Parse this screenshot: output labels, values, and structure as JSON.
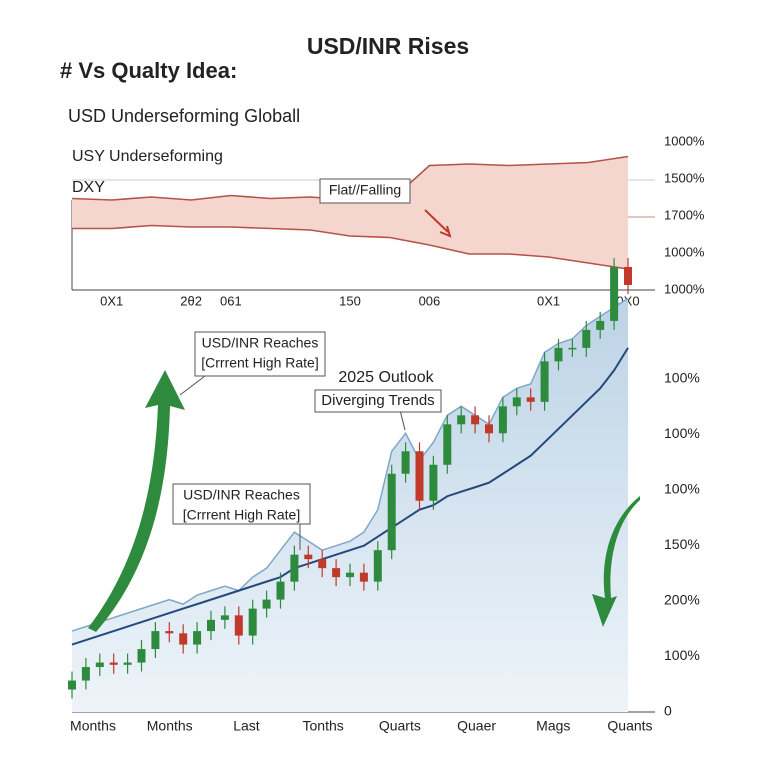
{
  "header": {
    "title": "USD/INR Rises",
    "subtitle": "# Vs Qualty Idea:",
    "caption": "USD Underseforming Globall"
  },
  "chart_data": [
    {
      "type": "line",
      "title": "USY Underseforming",
      "label": "DXY",
      "annotation": "Flat//Falling",
      "categories": [
        null,
        "0X1",
        null,
        "2θ2",
        "061",
        null,
        null,
        "150",
        null,
        "006",
        null,
        null,
        "0X1",
        null,
        "0X0"
      ],
      "series": [
        {
          "color": "#b5524a",
          "values": [
            61,
            60,
            62,
            60,
            63,
            61,
            62,
            60,
            59,
            83,
            84,
            83,
            84,
            85,
            89
          ]
        },
        {
          "color": "#b5524a",
          "values": [
            41,
            41,
            43,
            42,
            42,
            41,
            40,
            36,
            35,
            30,
            24,
            24,
            22,
            18,
            14
          ]
        }
      ],
      "fill": "#f4d6cf",
      "ylim": [
        0,
        100
      ],
      "y_labels": [
        "1000%",
        "1500%",
        "1700%",
        "1000%",
        "1000%"
      ]
    },
    {
      "type": "candlestick",
      "open": [
        5,
        7,
        10,
        11,
        10.5,
        11,
        14,
        18,
        17.5,
        15,
        18,
        20.5,
        21.5,
        17,
        23,
        25,
        29,
        35,
        34,
        32,
        30,
        31,
        29,
        36,
        53,
        58,
        47,
        55,
        64,
        66,
        64,
        62,
        68,
        70,
        69,
        78,
        81,
        81,
        85,
        87,
        99
      ],
      "high": [
        9,
        12,
        13,
        13,
        13,
        16,
        20,
        20,
        19.5,
        20,
        22.5,
        23.5,
        23.5,
        25,
        27,
        31,
        37,
        37,
        36,
        34,
        33,
        33,
        38,
        55,
        60,
        60,
        57,
        66,
        68,
        68,
        66,
        70,
        72,
        72,
        80,
        83,
        83,
        87,
        89,
        101,
        101
      ],
      "low": [
        3,
        5,
        8,
        8.5,
        8.5,
        9,
        12,
        15.5,
        13,
        13,
        16,
        18.5,
        15,
        15,
        21,
        23,
        27,
        32,
        30,
        28,
        28,
        27,
        27,
        34,
        51,
        45,
        45,
        53,
        62,
        62,
        60,
        60,
        66,
        67,
        67,
        76,
        79,
        79,
        83,
        85,
        93
      ],
      "close": [
        7,
        10,
        11,
        10.5,
        11,
        14,
        18,
        17.5,
        15,
        18,
        20.5,
        21.5,
        17,
        23,
        25,
        29,
        35,
        34,
        32,
        30,
        31,
        29,
        36,
        53,
        58,
        47,
        55,
        64,
        66,
        64,
        62,
        68,
        70,
        69,
        78,
        81,
        81,
        85,
        87,
        99,
        95
      ],
      "up_color": "#2e8b3e",
      "down_color": "#c0392b",
      "trend": {
        "color": "#24497a",
        "values": [
          15,
          16,
          17,
          18,
          19,
          20,
          21,
          22,
          23,
          24,
          25,
          26,
          27,
          28,
          29,
          30,
          32,
          33,
          34,
          35,
          36,
          37,
          39,
          41,
          43,
          45,
          46,
          48,
          49,
          50,
          51,
          53,
          55,
          57,
          60,
          63,
          66,
          69,
          72,
          76,
          81
        ]
      },
      "envelope": {
        "color": "#7fa7c9",
        "values": [
          18,
          19,
          20,
          21,
          22,
          23,
          24,
          25,
          24,
          26,
          27,
          28,
          27,
          30,
          32,
          36,
          40,
          38,
          36,
          37,
          38,
          40,
          45,
          58,
          62,
          56,
          60,
          66,
          68,
          66,
          64,
          70,
          72,
          73,
          80,
          82,
          83,
          86,
          88,
          90,
          92
        ]
      },
      "ylim": [
        0,
        105
      ],
      "x_labels": [
        "Months",
        "Months",
        "Last",
        "Tonths",
        "Quarts",
        "Quaer",
        "Mags",
        "Quants"
      ],
      "y_labels": [
        "100%",
        "100%",
        "100%",
        "150%",
        "200%",
        "100%",
        "0"
      ],
      "annotations": [
        [
          "USD/INR Reaches",
          "[Crrrent High Rate]"
        ],
        [
          "USD/INR Reaches",
          "[Crrrent High Rate]"
        ]
      ],
      "outlook": "2025 Outlook",
      "label": "Diverging Trends"
    }
  ]
}
